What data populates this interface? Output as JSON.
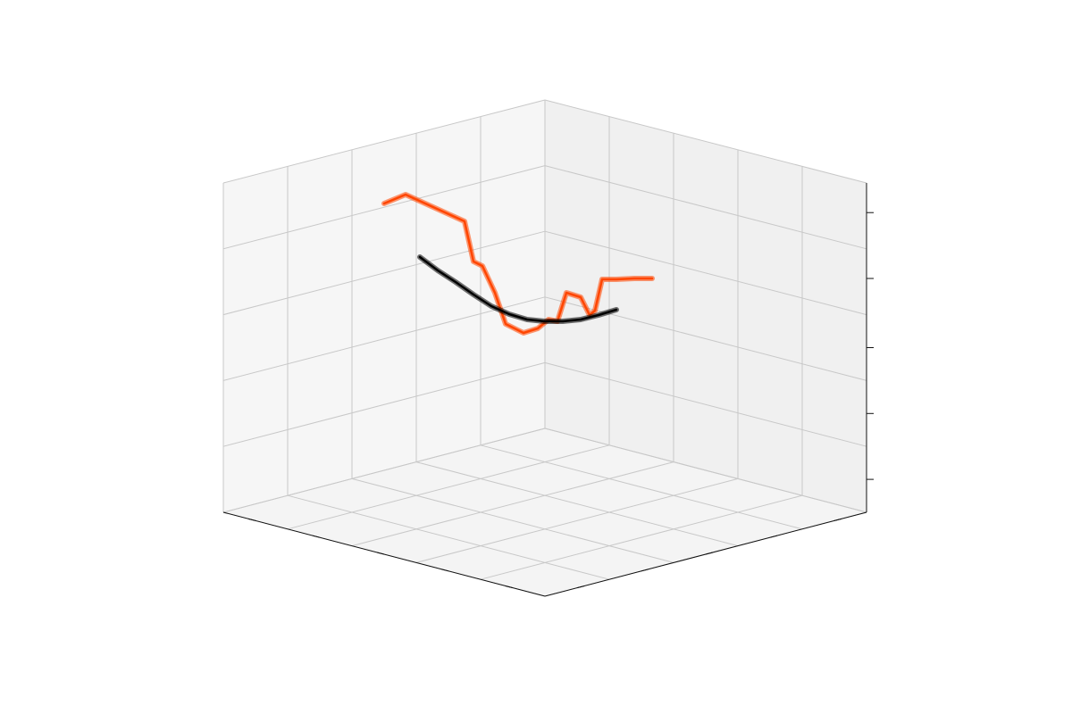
{
  "chart_data": {
    "type": "line",
    "projection": "3d",
    "title": "",
    "xlabel": "",
    "ylabel": "",
    "zlabel": "",
    "tick_labels_visible": false,
    "grid": true,
    "series": [
      {
        "color": "#ff4500",
        "points": [
          [
            -0.9,
            0.0,
            1.6
          ],
          [
            -0.78,
            0.0,
            1.7
          ],
          [
            -0.45,
            0.0,
            1.4
          ],
          [
            -0.4,
            0.0,
            0.95
          ],
          [
            -0.35,
            0.0,
            0.9
          ],
          [
            -0.28,
            0.0,
            0.6
          ],
          [
            -0.22,
            0.0,
            0.25
          ],
          [
            -0.17,
            0.0,
            0.2
          ],
          [
            -0.12,
            0.0,
            0.15
          ],
          [
            -0.04,
            0.0,
            0.2
          ],
          [
            0.02,
            0.0,
            0.3
          ],
          [
            0.07,
            0.0,
            0.28
          ],
          [
            0.12,
            0.0,
            0.6
          ],
          [
            0.2,
            0.0,
            0.55
          ],
          [
            0.25,
            0.0,
            0.35
          ],
          [
            0.28,
            0.0,
            0.4
          ],
          [
            0.32,
            0.0,
            0.75
          ],
          [
            0.4,
            0.0,
            0.75
          ],
          [
            0.5,
            0.0,
            0.76
          ],
          [
            0.6,
            0.0,
            0.76
          ]
        ]
      },
      {
        "color": "#000000",
        "points": [
          [
            -0.7,
            0.0,
            1.0
          ],
          [
            -0.6,
            0.0,
            0.85
          ],
          [
            -0.5,
            0.0,
            0.72
          ],
          [
            -0.4,
            0.0,
            0.58
          ],
          [
            -0.3,
            0.0,
            0.45
          ],
          [
            -0.2,
            0.0,
            0.36
          ],
          [
            -0.1,
            0.0,
            0.3
          ],
          [
            0.0,
            0.0,
            0.28
          ],
          [
            0.1,
            0.0,
            0.28
          ],
          [
            0.2,
            0.0,
            0.3
          ],
          [
            0.3,
            0.0,
            0.35
          ],
          [
            0.4,
            0.0,
            0.41
          ]
        ]
      }
    ]
  }
}
